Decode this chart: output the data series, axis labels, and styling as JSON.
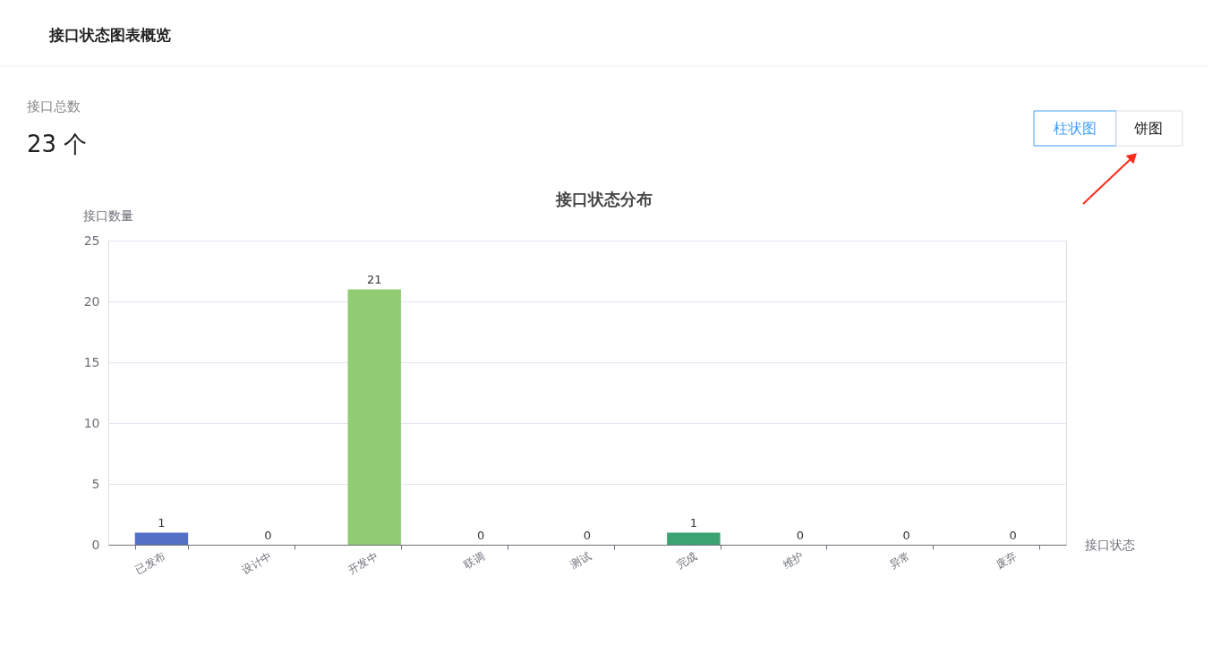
{
  "chart_data": {
    "type": "bar",
    "title": "接口状态分布",
    "ylabel": "接口数量",
    "xlabel": "接口状态",
    "annotations": [
      "接口状态图表概览",
      "接口总数",
      "23 个",
      "柱状图",
      "饼图"
    ],
    "categories": [
      "已发布",
      "设计中",
      "开发中",
      "联调",
      "测试",
      "完成",
      "维护",
      "异常",
      "废弃"
    ],
    "values": [
      1,
      0,
      21,
      0,
      0,
      1,
      0,
      0,
      0
    ],
    "colors": [
      "#5470c6",
      "#91cc75",
      "#91cc75",
      "#fac858",
      "#ee6666",
      "#3ba272",
      "#73c0de",
      "#fc8452",
      "#9a60b4"
    ],
    "ylim": [
      0,
      25
    ],
    "yticks": [
      0,
      5,
      10,
      15,
      20,
      25
    ],
    "grid": "y",
    "data_labels": true
  }
}
